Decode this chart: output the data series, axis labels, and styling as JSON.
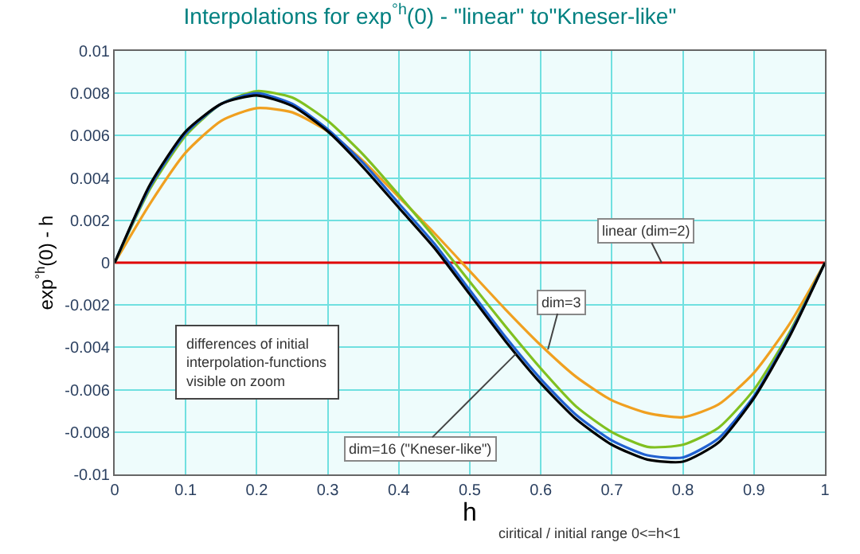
{
  "chart_data": {
    "type": "line",
    "title": "Interpolations for exp$^{°h}$(0) - \"linear\" to\"Kneser-like\"",
    "xlabel": "h",
    "ylabel": "exp$^{°h}$(0) - h",
    "x": [
      0,
      0.05,
      0.1,
      0.15,
      0.2,
      0.25,
      0.3,
      0.35,
      0.4,
      0.45,
      0.5,
      0.55,
      0.6,
      0.65,
      0.7,
      0.75,
      0.8,
      0.85,
      0.9,
      0.95,
      1
    ],
    "series": [
      {
        "color": "#e00000",
        "x": [
          0,
          1
        ],
        "values": [
          0,
          0
        ]
      },
      {
        "color": "#f0a020",
        "values": [
          0,
          0.0028,
          0.0052,
          0.0067,
          0.0073,
          0.0071,
          0.0062,
          0.0048,
          0.0031,
          0.0014,
          -0.0004,
          -0.0022,
          -0.0039,
          -0.0054,
          -0.0065,
          -0.0071,
          -0.0073,
          -0.0067,
          -0.0052,
          -0.0029,
          0
        ]
      },
      {
        "color": "#80c020",
        "values": [
          0,
          0.0035,
          0.006,
          0.0075,
          0.0081,
          0.0078,
          0.0067,
          0.0051,
          0.0032,
          0.0012,
          -0.0009,
          -0.003,
          -0.005,
          -0.0068,
          -0.008,
          -0.0087,
          -0.0086,
          -0.0078,
          -0.006,
          -0.0033,
          0
        ]
      },
      {
        "color": "#2060d0",
        "values": [
          0,
          0.0036,
          0.0061,
          0.0075,
          0.008,
          0.0075,
          0.0063,
          0.0047,
          0.0028,
          0.0009,
          -0.0013,
          -0.0035,
          -0.0055,
          -0.0072,
          -0.0084,
          -0.0091,
          -0.0092,
          -0.0083,
          -0.0063,
          -0.0034,
          0
        ]
      },
      {
        "color": "#000000",
        "values": [
          0,
          0.0037,
          0.0062,
          0.0075,
          0.0079,
          0.0074,
          0.0062,
          0.0045,
          0.0026,
          0.0007,
          -0.0015,
          -0.0037,
          -0.0057,
          -0.0074,
          -0.0086,
          -0.0093,
          -0.0094,
          -0.0085,
          -0.0064,
          -0.0035,
          0
        ]
      }
    ],
    "xlim": [
      0,
      1
    ],
    "xticks": [
      0,
      0.1,
      0.2,
      0.3,
      0.4,
      0.5,
      0.6,
      0.7,
      0.8,
      0.9,
      1
    ],
    "ylim": [
      -0.01,
      0.01
    ],
    "yticks": [
      -0.01,
      -0.008,
      -0.006,
      -0.004,
      -0.002,
      0,
      0.002,
      0.004,
      0.006,
      0.008,
      0.01
    ],
    "grid": true,
    "marker": "none",
    "line_style": "solid",
    "annotations": [
      {
        "text": "linear (dim=2)",
        "x": 0.77,
        "y": 0
      },
      {
        "text": "dim=3",
        "x": 0.61,
        "y": -0.0041
      },
      {
        "text": "dim=16 (\"Kneser-like\")",
        "x": 0.565,
        "y": -0.0043
      },
      "differences of initial\ninterpolation-functions\nvisible on zoom",
      "ciritical / initial range 0<=h<1"
    ]
  }
}
